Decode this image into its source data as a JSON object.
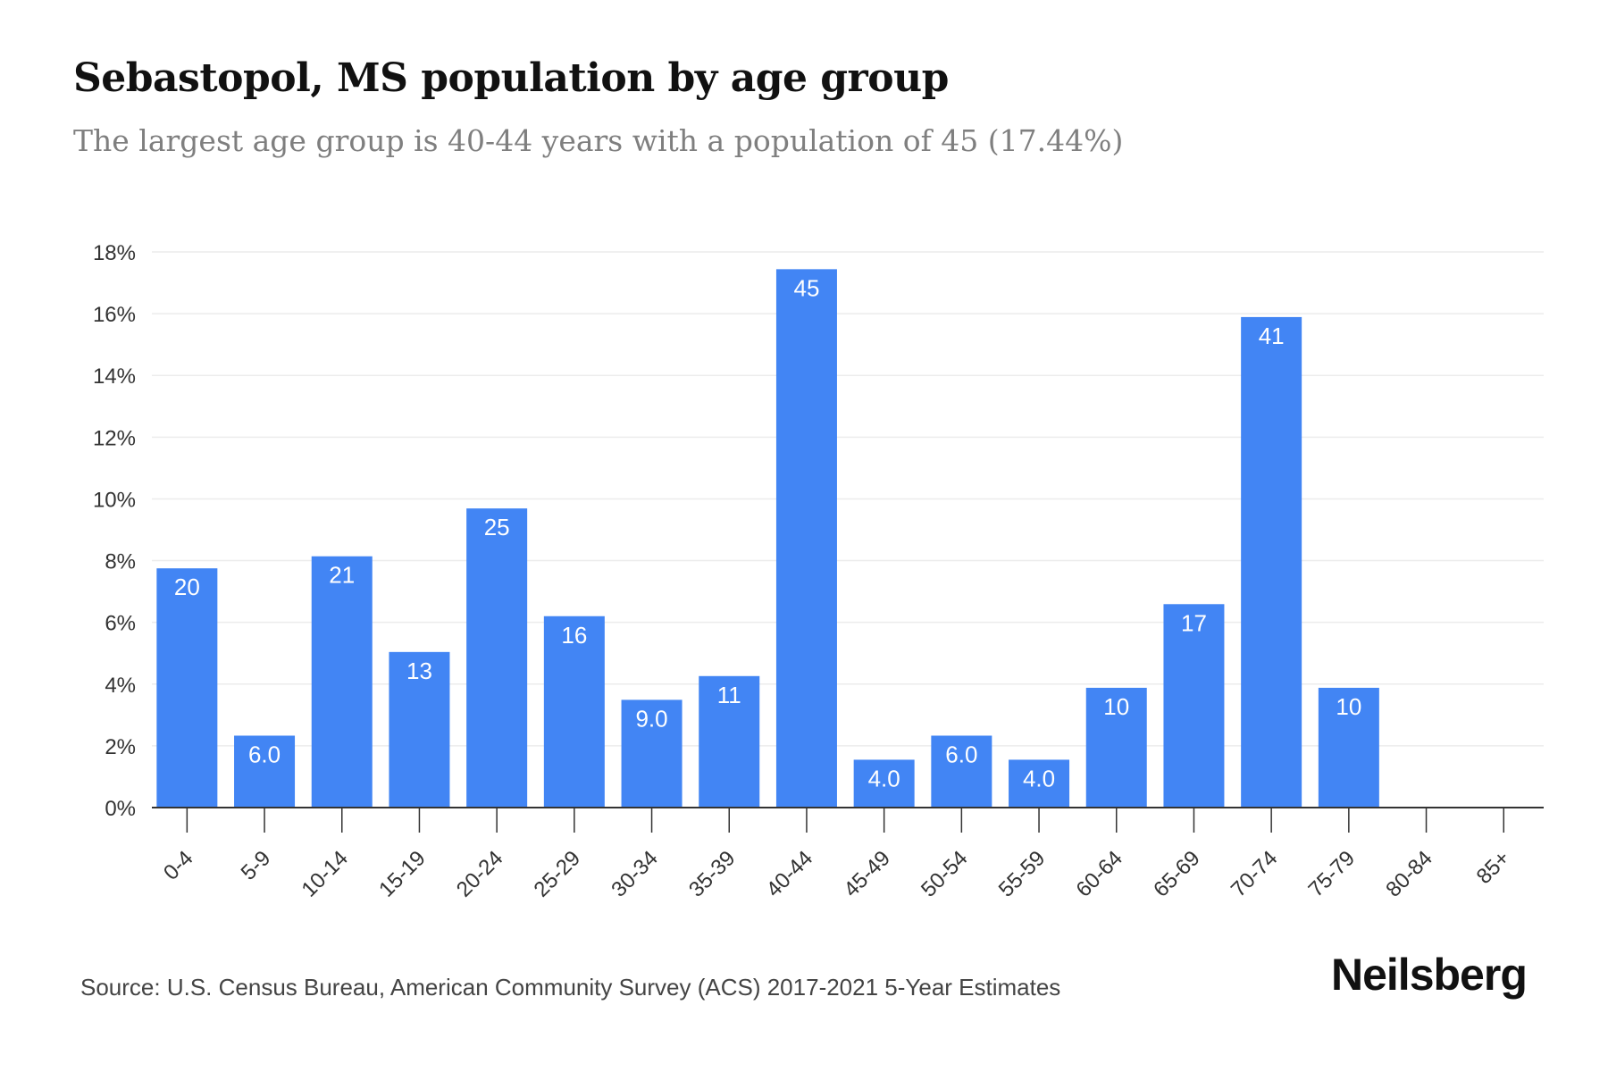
{
  "header": {
    "title": "Sebastopol, MS population by age group",
    "subtitle": "The largest age group is 40-44 years with a population of 45 (17.44%)"
  },
  "footer": {
    "source": "Source: U.S. Census Bureau, American Community Survey (ACS) 2017-2021 5-Year Estimates",
    "brand": "Neilsberg"
  },
  "colors": {
    "bar": "#4285f4",
    "grid": "#ececec",
    "axis": "#333333"
  },
  "chart_data": {
    "type": "bar",
    "categories": [
      "0-4",
      "5-9",
      "10-14",
      "15-19",
      "20-24",
      "25-29",
      "30-34",
      "35-39",
      "40-44",
      "45-49",
      "50-54",
      "55-59",
      "60-64",
      "65-69",
      "70-74",
      "75-79",
      "80-84",
      "85+"
    ],
    "values": [
      7.75,
      2.33,
      8.14,
      5.04,
      9.69,
      6.2,
      3.49,
      4.26,
      17.44,
      1.55,
      2.33,
      1.55,
      3.88,
      6.59,
      15.89,
      3.88,
      0,
      0
    ],
    "data_labels": [
      "20",
      "6.0",
      "21",
      "13",
      "25",
      "16",
      "9.0",
      "11",
      "45",
      "4.0",
      "6.0",
      "4.0",
      "10",
      "17",
      "41",
      "10",
      "",
      ""
    ],
    "ylim": [
      0,
      18
    ],
    "yticks": [
      0,
      2,
      4,
      6,
      8,
      10,
      12,
      14,
      16,
      18
    ],
    "ytick_labels": [
      "0%",
      "2%",
      "4%",
      "6%",
      "8%",
      "10%",
      "12%",
      "14%",
      "16%",
      "18%"
    ],
    "grid": true,
    "xlabel": "",
    "ylabel": ""
  }
}
